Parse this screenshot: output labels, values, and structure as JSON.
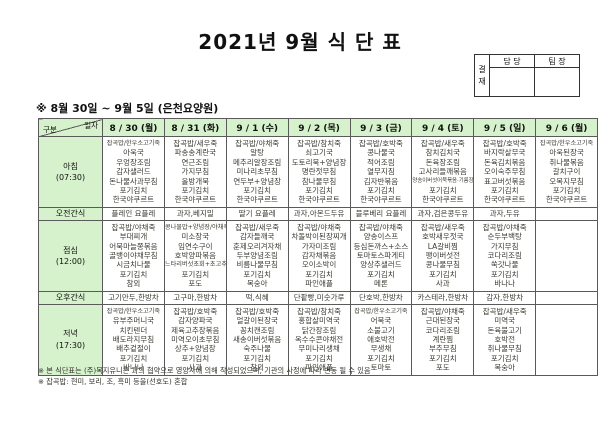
{
  "title": "2021년 9월 식 단 표",
  "approval": {
    "label": "결\n재",
    "roles": [
      "담 당",
      "팀 장"
    ]
  },
  "period_note": "※  8월 30일 ~ 9월 5일 (은천요양원)",
  "table": {
    "corner": {
      "top": "일자",
      "bottom": "구분"
    },
    "columns": [
      {
        "label": "8 / 30 (월)",
        "day": "weekday"
      },
      {
        "label": "8 / 31 (화)",
        "day": "weekday"
      },
      {
        "label": "9 / 1 (수)",
        "day": "weekday"
      },
      {
        "label": "9 / 2 (목)",
        "day": "weekday"
      },
      {
        "label": "9 / 3 (금)",
        "day": "weekday"
      },
      {
        "label": "9 / 4 (토)",
        "day": "sat"
      },
      {
        "label": "9 / 5 (일)",
        "day": "sun"
      },
      {
        "label": "9 / 6 (월)",
        "day": "weekday"
      }
    ],
    "rows": [
      {
        "label": "아침",
        "time": "(07:30)",
        "type": "meal",
        "cells": [
          [
            "잡곡밥/한우소고기죽",
            "아욱국",
            "우엉장조림",
            "감자샐러드",
            "돈나물사과무침",
            "포기김치",
            "한국야쿠르트"
          ],
          [
            "잡곡밥/새우죽",
            "파송송계란국",
            "연근조림",
            "가지무침",
            "올방개묵",
            "포기김치",
            "한국야쿠르트"
          ],
          [
            "잡곡밥/야채죽",
            "알탕",
            "메추리알장조림",
            "미나리초무침",
            "연두부+양념장",
            "포기김치",
            "한국야쿠르트"
          ],
          [
            "잡곡밥/참치죽",
            "쇠고기국",
            "도토리묵+양념장",
            "명란젓무침",
            "참나물무침",
            "포기김치",
            "한국야쿠르트"
          ],
          [
            "잡곡밥/호박죽",
            "콩나물국",
            "적어조림",
            "열무지짐",
            "김자반볶음",
            "포기김치",
            "한국야쿠르트"
          ],
          [
            "잡곡밥/새우죽",
            "참치김치국",
            "돈육장조림",
            "고사리들깨볶음",
            "양송이버섯어묵볶음·기름장",
            "포기김치",
            "한국야쿠르트"
          ],
          [
            "잡곡밥/호박죽",
            "바지락살무국",
            "돈육김치볶음",
            "오이숙주무침",
            "표고버섯볶음",
            "포기김치",
            "한국야쿠르트"
          ],
          [
            "잡곡밥/한우소고기죽",
            "아욱된장국",
            "취나물볶음",
            "갈치구이",
            "오복지무침",
            "포기김치",
            "한국야쿠르트"
          ]
        ]
      },
      {
        "label": "오전간식",
        "time": "",
        "type": "snack",
        "cells": [
          "플레인 요플레",
          "과자,베지밀",
          "딸기 요플레",
          "과자,아몬드두유",
          "블루베리 요플레",
          "과자,검은콩두유",
          "과자,두유",
          ""
        ]
      },
      {
        "label": "점심",
        "time": "(12:00)",
        "type": "meal",
        "cells": [
          [
            "잡곡밥/야채죽",
            "부대찌개",
            "어묵마늘쫑볶음",
            "골뱅이야채무침",
            "시금치나물",
            "포기김치",
            "참외"
          ],
          [
            "콩나물밥+양념장/야채죽",
            "미소장국",
            "임연수구이",
            "호박양파볶음",
            "느타리버섯초회+초고추장",
            "포기김치",
            "포도"
          ],
          [
            "잡곡밥/새우죽",
            "감자들깨국",
            "훈제오리겨자채",
            "두부양념조림",
            "비름나물무침",
            "포기김치",
            "복숭아"
          ],
          [
            "잡곡밥/야채죽",
            "차돌박이된장찌개",
            "가자미조림",
            "감자채볶음",
            "오이소박이",
            "포기김치",
            "파인애플"
          ],
          [
            "잡곡밥/야채죽",
            "양송이스프",
            "등심돈까스+소스",
            "토마토스파게티",
            "양상추샐러드",
            "포기김치",
            "메론"
          ],
          [
            "잡곡밥/새우죽",
            "호박새우젓국",
            "LA갈비찜",
            "팽이버섯전",
            "콩나물무침",
            "포기김치",
            "사과"
          ],
          [
            "잡곡밥/야채죽",
            "순두부백탕",
            "가지무침",
            "코다리조림",
            "쑥갓나물",
            "포기김치",
            "바나나"
          ],
          [
            "",
            "",
            "",
            "",
            "",
            "",
            ""
          ]
        ]
      },
      {
        "label": "오후간식",
        "time": "",
        "type": "snack",
        "cells": [
          "고기만두,한방차",
          "고구마,한방차",
          "떡,식혜",
          "단팥빵,미숫가루",
          "단호박,한방차",
          "카스테라,한방차",
          "감자,한방차",
          ""
        ]
      },
      {
        "label": "저녁",
        "time": "(17:30)",
        "type": "meal",
        "cells": [
          [
            "잡곡밥/한우소고기죽",
            "유부주머니국",
            "치킨텐더",
            "배도라지무침",
            "배추겉절이",
            "포기김치",
            "바나나"
          ],
          [
            "잡곡밥/호박죽",
            "감자양파국",
            "제육고추장볶음",
            "미역오이초무침",
            "상추+양념장",
            "포기김치",
            "사과"
          ],
          [
            "잡곡밥/호박죽",
            "얼갈이된장국",
            "꽁치캔조림",
            "새송이버섯볶음",
            "숙주나물",
            "포기김치",
            "참외"
          ],
          [
            "잡곡밥/참치죽",
            "홍합살미역국",
            "닭간장조림",
            "옥수수콘야채전",
            "무미나리생채",
            "포기김치",
            "파인애플"
          ],
          [
            "잡곡밥/한우소고기죽",
            "어묵국",
            "소불고기",
            "애호박전",
            "무생채",
            "포기김치",
            "토마토"
          ],
          [
            "잡곡밥/야채죽",
            "근대된장국",
            "코다리조림",
            "계란찜",
            "부추무침",
            "포기김치",
            "포도"
          ],
          [
            "잡곡밥/새우죽",
            "미역국",
            "돈육불고기",
            "호박전",
            "취나물무침",
            "포기김치",
            "복숭아"
          ],
          [
            "",
            "",
            "",
            "",
            "",
            "",
            ""
          ]
        ]
      }
    ]
  },
  "footnotes": [
    "※ 본 식단표는 (주)복지유니온 과의 협약으로 영양사에 의해 작성되었으며, 기관의 사정에 따라 변동 될 수 있음",
    "※ 잡곡밥: 현미, 보리, 조, 흑미 등을(선호도) 혼합"
  ]
}
